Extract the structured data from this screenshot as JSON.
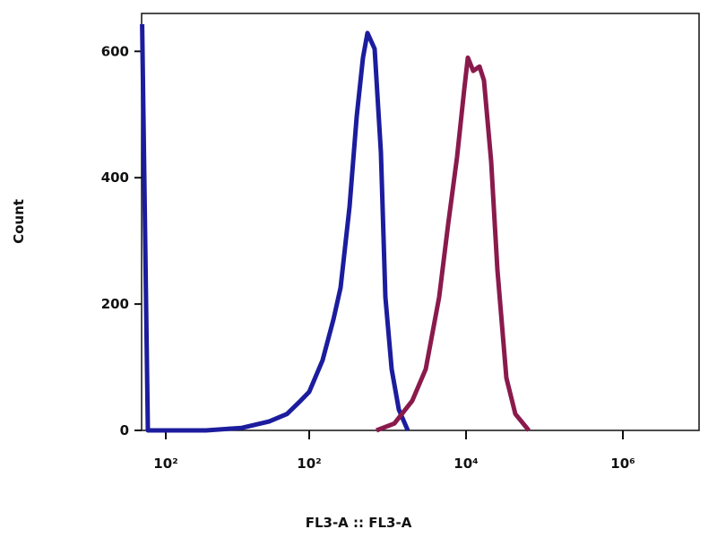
{
  "chart_data": {
    "type": "line",
    "x_label": "FL3-A :: FL3-A",
    "y_label": "Count",
    "xlim": [
      -133,
      9000000
    ],
    "ylim": [
      0,
      660
    ],
    "xticks": [
      {
        "value": -100,
        "label": "10²"
      },
      {
        "value": 100,
        "label": "10²"
      },
      {
        "value": 10000,
        "label": "10⁴"
      },
      {
        "value": 1000000,
        "label": "10⁶"
      }
    ],
    "yticks": [
      0,
      200,
      400,
      600
    ],
    "series": [
      {
        "color": "#1c1c9e",
        "x": [
          -133,
          -125,
          -75,
          -44,
          6,
          44,
          69,
          88,
          100,
          148,
          204,
          251,
          327,
          403,
          485,
          553,
          683,
          821,
          936,
          1125,
          1389,
          1807
        ],
        "values": [
          643,
          0,
          0,
          0,
          4,
          14,
          26,
          47,
          61,
          111,
          176,
          226,
          354,
          497,
          590,
          629,
          604,
          440,
          211,
          97,
          33,
          0
        ]
      },
      {
        "color": "#8a1a4c",
        "x": [
          719,
          1218,
          2061,
          3061,
          4540,
          5904,
          7690,
          9480,
          10540,
          12340,
          14830,
          16940,
          20900,
          25120,
          32680,
          42530,
          63100
        ],
        "values": [
          0,
          11,
          47,
          97,
          211,
          326,
          433,
          540,
          590,
          569,
          576,
          554,
          426,
          254,
          83,
          26,
          0
        ]
      }
    ]
  }
}
